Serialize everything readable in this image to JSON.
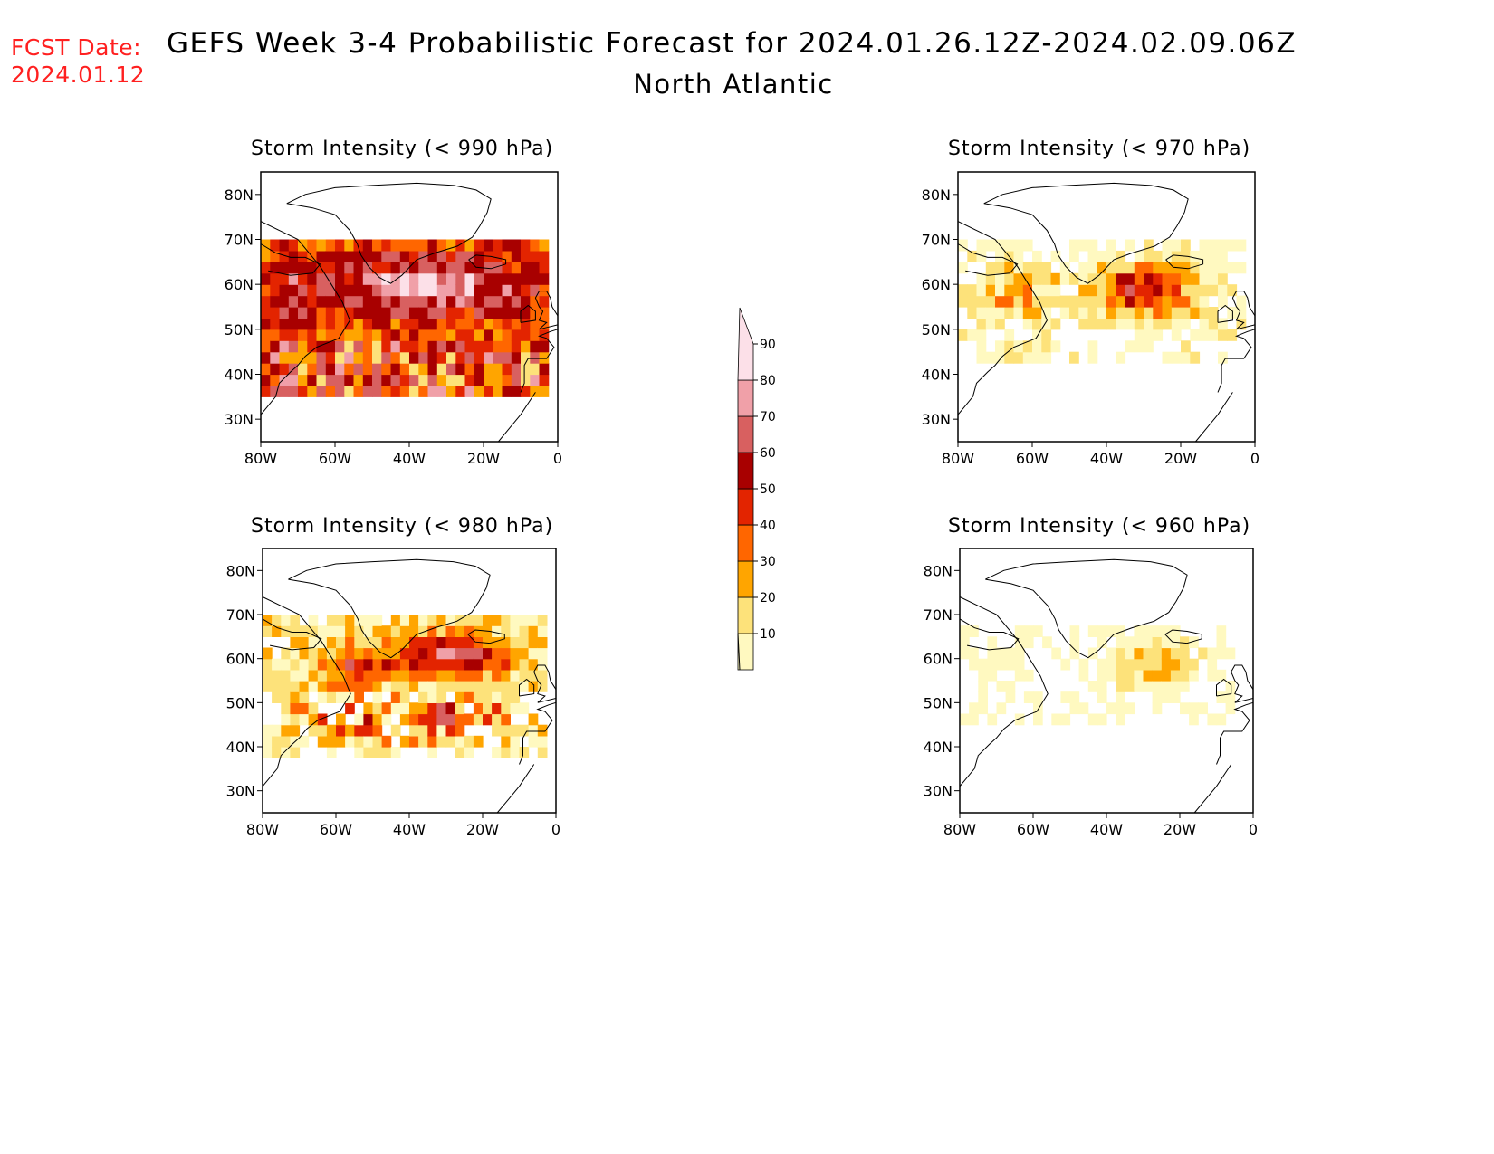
{
  "header": {
    "fcst_label": "FCST Date:",
    "fcst_date": "2024.01.12",
    "title": "GEFS Week 3-4 Probabilistic Forecast for 2024.01.26.12Z-2024.02.09.06Z",
    "region": "North Atlantic"
  },
  "panels": [
    {
      "title": "Storm Intensity (< 990 hPa)",
      "threshold_hPa": 990,
      "level": 4
    },
    {
      "title": "Storm Intensity (< 970 hPa)",
      "threshold_hPa": 970,
      "level": 2
    },
    {
      "title": "Storm Intensity (< 980 hPa)",
      "threshold_hPa": 980,
      "level": 3
    },
    {
      "title": "Storm Intensity (< 960 hPa)",
      "threshold_hPa": 960,
      "level": 1
    }
  ],
  "axes": {
    "lon_ticks": [
      "80W",
      "60W",
      "40W",
      "20W",
      "0"
    ],
    "lat_ticks": [
      "80N",
      "70N",
      "60N",
      "50N",
      "40N",
      "30N"
    ],
    "lon_values": [
      -80,
      -60,
      -40,
      -20,
      0
    ],
    "lat_values": [
      80,
      70,
      60,
      50,
      40,
      30
    ],
    "lon_range": [
      -80,
      0
    ],
    "lat_range": [
      25,
      85
    ]
  },
  "colorbar": {
    "labels": [
      "10",
      "20",
      "30",
      "40",
      "50",
      "60",
      "70",
      "80",
      "90"
    ],
    "levels": [
      10,
      20,
      30,
      40,
      50,
      60,
      70,
      80,
      90
    ],
    "colors": [
      "#fff9c0",
      "#fde27a",
      "#ffa500",
      "#ff6600",
      "#e32400",
      "#a80000",
      "#d86060",
      "#f0a0a8",
      "#fce0e8"
    ]
  }
}
